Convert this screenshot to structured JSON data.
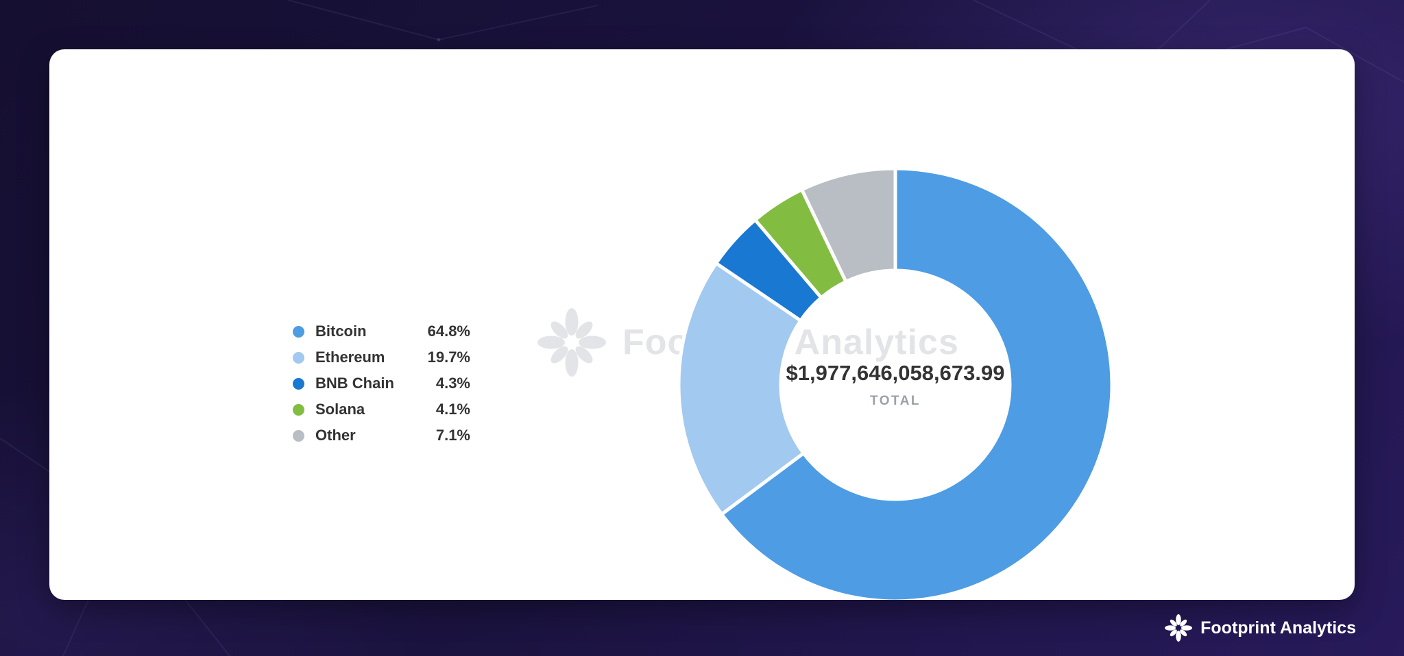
{
  "chart_data": {
    "type": "pie",
    "donut": true,
    "legend_position": "left",
    "total_value": "$1,977,646,058,673.99",
    "total_label": "TOTAL",
    "series": [
      {
        "name": "Bitcoin",
        "value": 64.8,
        "percent_label": "64.8%",
        "color": "#4d9ce4"
      },
      {
        "name": "Ethereum",
        "value": 19.7,
        "percent_label": "19.7%",
        "color": "#a2c9ef"
      },
      {
        "name": "BNB Chain",
        "value": 4.3,
        "percent_label": "4.3%",
        "color": "#1878d2"
      },
      {
        "name": "Solana",
        "value": 4.1,
        "percent_label": "4.1%",
        "color": "#82bc41"
      },
      {
        "name": "Other",
        "value": 7.1,
        "percent_label": "7.1%",
        "color": "#b9bdc4"
      }
    ]
  },
  "watermark": {
    "text": "Footprint Analytics"
  },
  "footer_logo": {
    "text": "Footprint Analytics"
  }
}
